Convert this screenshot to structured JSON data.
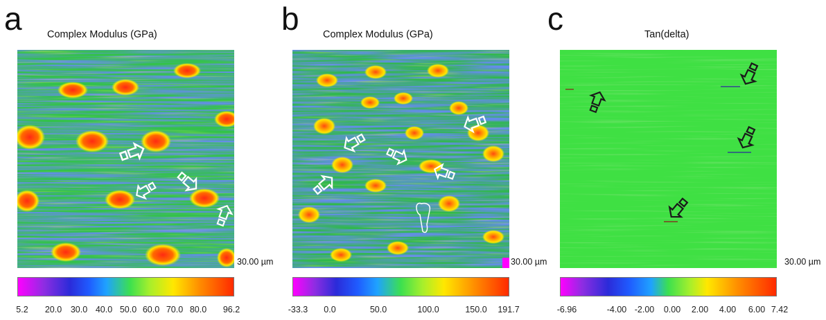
{
  "panels": [
    {
      "letter": "a",
      "title": "Complex Modulus (GPa)",
      "scale_bar": "30.00 µm",
      "colorbar_ticks": [
        "5.2",
        "20.0",
        "30.0",
        "40.0",
        "50.0",
        "60.0",
        "70.0",
        "80.0",
        "96.2"
      ],
      "arrow_color": "#ffffff"
    },
    {
      "letter": "b",
      "title": "Complex Modulus (GPa)",
      "scale_bar": "30.00 µm",
      "colorbar_ticks": [
        "-33.3",
        "0.0",
        "50.0",
        "100.0",
        "150.0",
        "191.7"
      ],
      "arrow_color": "#ffffff"
    },
    {
      "letter": "c",
      "title": "Tan(delta)",
      "scale_bar": "30.00 µm",
      "colorbar_ticks": [
        "-6.96",
        "-4.00",
        "-2.00",
        "0.00",
        "2.00",
        "4.00",
        "6.00",
        "7.42"
      ],
      "arrow_color": "#1a1a1a"
    }
  ],
  "colormap": [
    "#ff00ff",
    "#8e2de2",
    "#2b2bd9",
    "#1f5cff",
    "#1fa2ff",
    "#3ce04f",
    "#a6ef2c",
    "#ffe800",
    "#ff8f00",
    "#ff2a00"
  ],
  "map_colors": {
    "base_green": "#33c24a",
    "blue": "#2343d9",
    "yellow": "#ffe800",
    "red": "#ff2a12",
    "tan_green": "#3fe043"
  }
}
